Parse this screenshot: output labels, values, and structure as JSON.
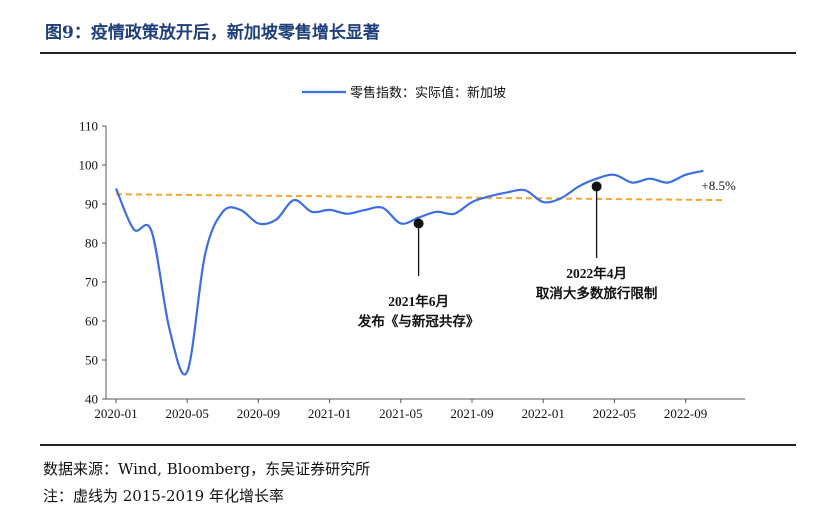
{
  "title": "图9：疫情政策放开后，新加坡零售增长显著",
  "source_note": "数据来源：Wind, Bloomberg，东吴证券研究所",
  "dash_note": "注：虚线为 2015-2019 年化增长率",
  "colors": {
    "series": "#3d6fe0",
    "trend": "#f5a531",
    "title": "#1f3f7a"
  },
  "chart_data": {
    "type": "line",
    "legend_position": "top-center",
    "grid": false,
    "ylim": [
      40,
      110
    ],
    "yticks": [
      "110",
      "100",
      "90",
      "80",
      "70",
      "60",
      "50",
      "40"
    ],
    "xticks": [
      "2020-01",
      "2020-05",
      "2020-09",
      "2021-01",
      "2021-05",
      "2021-09",
      "2022-01",
      "2022-05",
      "2022-09"
    ],
    "series": [
      {
        "name": "零售指数：实际值：新加坡",
        "x": [
          "2020-01",
          "2020-02",
          "2020-03",
          "2020-04",
          "2020-05",
          "2020-06",
          "2020-07",
          "2020-08",
          "2020-09",
          "2020-10",
          "2020-11",
          "2020-12",
          "2021-01",
          "2021-02",
          "2021-03",
          "2021-04",
          "2021-05",
          "2021-06",
          "2021-07",
          "2021-08",
          "2021-09",
          "2021-10",
          "2021-11",
          "2021-12",
          "2022-01",
          "2022-02",
          "2022-03",
          "2022-04",
          "2022-05",
          "2022-06",
          "2022-07",
          "2022-08",
          "2022-09",
          "2022-10"
        ],
        "values": [
          94,
          83.5,
          83,
          58,
          47,
          77,
          88,
          88.5,
          85,
          86,
          91,
          88,
          88.5,
          87.5,
          88.5,
          89,
          85,
          86.5,
          88,
          87.5,
          90.5,
          92,
          93,
          93.5,
          90.5,
          91.5,
          94.5,
          96.5,
          97.5,
          95.5,
          96.5,
          95.5,
          97.5,
          98.5
        ]
      },
      {
        "name": "2015-2019 年化增长率",
        "style": "dashed",
        "x": [
          "2020-01",
          "2022-10"
        ],
        "values": [
          92.5,
          91
        ]
      }
    ],
    "annotations": [
      {
        "x": "2021-06",
        "y": 85,
        "lines": [
          "2021年6月",
          "发布《与新冠共存》"
        ]
      },
      {
        "x": "2022-04",
        "y": 94.5,
        "lines": [
          "2022年4月",
          "取消大多数旅行限制"
        ]
      },
      {
        "x": "2022-10",
        "y": 98.5,
        "text": "+8.5%"
      }
    ]
  }
}
